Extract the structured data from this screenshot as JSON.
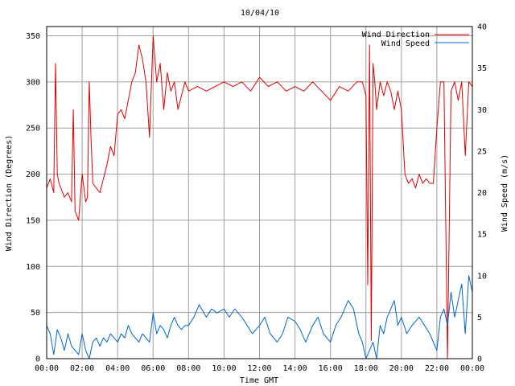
{
  "chart_data": {
    "type": "line",
    "title": "10/04/10",
    "xlabel": "Time GMT",
    "ylabel": "Wind Direction (Degrees)",
    "y2label": "Wind Speed (m/s)",
    "x_ticks": [
      "00:00",
      "02:00",
      "04:00",
      "06:00",
      "08:00",
      "10:00",
      "12:00",
      "14:00",
      "16:00",
      "18:00",
      "20:00",
      "22:00",
      "00:00"
    ],
    "xlim_hours": [
      0,
      24
    ],
    "ylim": [
      0,
      360
    ],
    "y_ticks": [
      "0",
      "50",
      "100",
      "150",
      "200",
      "250",
      "300",
      "350"
    ],
    "y2lim": [
      0,
      40
    ],
    "y2_ticks": [
      "0",
      "5",
      "10",
      "15",
      "20",
      "25",
      "30",
      "35",
      "40"
    ],
    "grid": true,
    "legend_position": "top-right",
    "series": [
      {
        "name": "Wind Direction",
        "axis": "left",
        "color": "#e00000",
        "hours": [
          0,
          0.2,
          0.4,
          0.5,
          0.6,
          0.7,
          0.8,
          1.0,
          1.2,
          1.4,
          1.5,
          1.6,
          1.8,
          2.0,
          2.1,
          2.2,
          2.3,
          2.4,
          2.5,
          2.6,
          2.8,
          3.0,
          3.2,
          3.4,
          3.6,
          3.8,
          4.0,
          4.2,
          4.4,
          4.6,
          4.8,
          5.0,
          5.2,
          5.4,
          5.6,
          5.8,
          6.0,
          6.2,
          6.4,
          6.6,
          6.8,
          7.0,
          7.2,
          7.4,
          7.6,
          7.8,
          8.0,
          8.5,
          9.0,
          9.5,
          10.0,
          10.5,
          11.0,
          11.5,
          12.0,
          12.5,
          13.0,
          13.5,
          14.0,
          14.5,
          15.0,
          15.5,
          16.0,
          16.5,
          17.0,
          17.5,
          17.8,
          18.0,
          18.1,
          18.2,
          18.3,
          18.4,
          18.5,
          18.6,
          18.8,
          19.0,
          19.2,
          19.4,
          19.6,
          19.8,
          20.0,
          20.2,
          20.4,
          20.6,
          20.8,
          21.0,
          21.2,
          21.4,
          21.6,
          21.8,
          22.0,
          22.2,
          22.4,
          22.6,
          22.8,
          23.0,
          23.2,
          23.4,
          23.6,
          23.8,
          24.0
        ],
        "values": [
          185,
          195,
          180,
          320,
          200,
          190,
          185,
          175,
          180,
          170,
          270,
          160,
          150,
          200,
          185,
          170,
          175,
          300,
          240,
          190,
          185,
          180,
          195,
          210,
          230,
          220,
          265,
          270,
          260,
          280,
          300,
          310,
          340,
          325,
          300,
          240,
          350,
          300,
          320,
          270,
          310,
          290,
          300,
          270,
          285,
          300,
          290,
          295,
          290,
          295,
          300,
          295,
          300,
          290,
          305,
          295,
          300,
          290,
          295,
          290,
          300,
          290,
          280,
          295,
          290,
          300,
          300,
          285,
          80,
          340,
          20,
          320,
          300,
          270,
          300,
          285,
          300,
          290,
          270,
          290,
          270,
          200,
          190,
          195,
          185,
          200,
          190,
          195,
          190,
          190,
          250,
          300,
          300,
          0,
          290,
          300,
          280,
          300,
          220,
          300,
          295
        ]
      },
      {
        "name": "Wind Speed",
        "axis": "right",
        "color": "#0066cc",
        "hours": [
          0,
          0.2,
          0.4,
          0.6,
          0.8,
          1.0,
          1.2,
          1.4,
          1.6,
          1.8,
          2.0,
          2.2,
          2.4,
          2.6,
          2.8,
          3.0,
          3.2,
          3.4,
          3.6,
          3.8,
          4.0,
          4.2,
          4.4,
          4.6,
          4.8,
          5.0,
          5.2,
          5.4,
          5.6,
          5.8,
          6.0,
          6.2,
          6.4,
          6.6,
          6.8,
          7.0,
          7.2,
          7.4,
          7.6,
          7.8,
          8.0,
          8.3,
          8.6,
          9.0,
          9.3,
          9.6,
          10.0,
          10.3,
          10.6,
          11.0,
          11.3,
          11.6,
          12.0,
          12.3,
          12.6,
          13.0,
          13.3,
          13.6,
          14.0,
          14.3,
          14.6,
          15.0,
          15.3,
          15.6,
          16.0,
          16.3,
          16.6,
          17.0,
          17.3,
          17.6,
          17.8,
          18.0,
          18.2,
          18.4,
          18.6,
          18.8,
          19.0,
          19.2,
          19.4,
          19.6,
          19.8,
          20.0,
          20.3,
          20.6,
          21.0,
          21.3,
          21.6,
          22.0,
          22.2,
          22.4,
          22.6,
          22.8,
          23.0,
          23.2,
          23.4,
          23.6,
          23.8,
          24.0
        ],
        "values": [
          4,
          3,
          0.5,
          3.5,
          2.5,
          1,
          3,
          1.5,
          1,
          0.5,
          3,
          1,
          0,
          2,
          2.5,
          1.5,
          2.5,
          2,
          3,
          2.5,
          2,
          3,
          2.5,
          4,
          3,
          2.5,
          2,
          3,
          2.5,
          2,
          5.5,
          3,
          4,
          3.5,
          2.5,
          4,
          5,
          4,
          3.5,
          4,
          4,
          5,
          6.5,
          5,
          6,
          5.5,
          6,
          5,
          6,
          5,
          4,
          3,
          4,
          5,
          3,
          2,
          3,
          5,
          4.5,
          3.5,
          2,
          4,
          5,
          3,
          2,
          4,
          5,
          7,
          6,
          3,
          2,
          0,
          1,
          2,
          0,
          4,
          3,
          5,
          6,
          7,
          4,
          5,
          3,
          4,
          5,
          4,
          3,
          1,
          5,
          6,
          4,
          8,
          5,
          7,
          9,
          3,
          10,
          8
        ]
      }
    ]
  }
}
